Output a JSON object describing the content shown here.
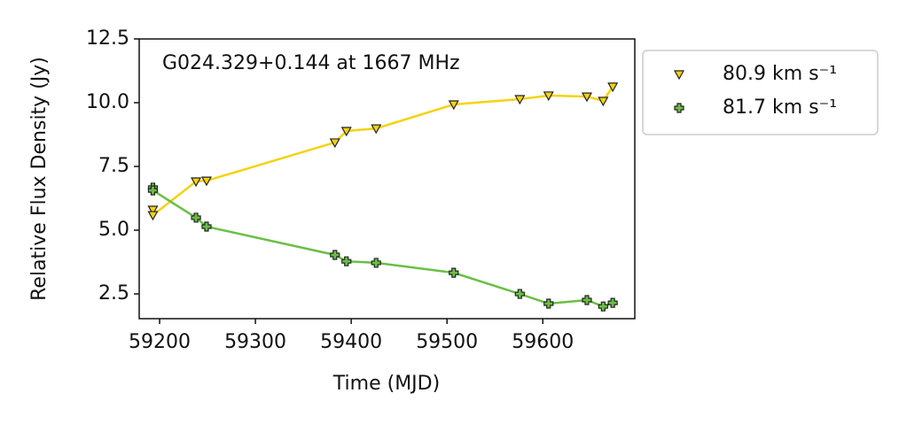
{
  "chart_data": {
    "type": "line",
    "annotation": "G024.329+0.144 at 1667 MHz",
    "xlabel": "Time (MJD)",
    "ylabel": "Relative Flux Density (Jy)",
    "x": [
      59193,
      59193,
      59238,
      59249,
      59383,
      59395,
      59426,
      59507,
      59576,
      59606,
      59646,
      59663,
      59673
    ],
    "series": [
      {
        "name": "80.9 km s⁻¹",
        "color": "#f5d20f",
        "marker": "triangle-down",
        "values": [
          5.8,
          5.59,
          6.91,
          6.94,
          8.44,
          8.89,
          8.99,
          9.93,
          10.14,
          10.28,
          10.24,
          10.07,
          10.63
        ]
      },
      {
        "name": "81.7 km s⁻¹",
        "color": "#6abf45",
        "marker": "plus",
        "values": [
          6.67,
          6.56,
          5.49,
          5.14,
          4.03,
          3.78,
          3.72,
          3.33,
          2.5,
          2.12,
          2.26,
          2.01,
          2.15
        ]
      }
    ],
    "xlim": [
      59178.7,
      59696
    ],
    "xticks": [
      59200,
      59300,
      59400,
      59500,
      59600
    ],
    "ylim": [
      1.53,
      12.5
    ],
    "yticks": [
      2.5,
      5.0,
      7.5,
      10.0,
      12.5
    ],
    "legend": "outside-right"
  }
}
